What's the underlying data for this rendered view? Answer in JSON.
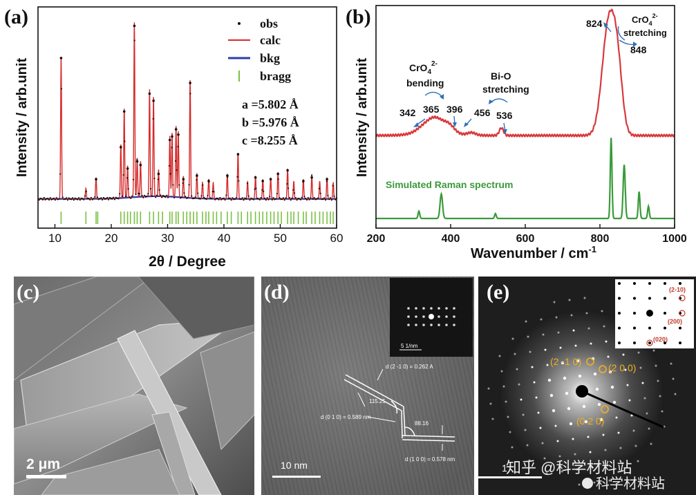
{
  "panel_labels": {
    "a": "(a)",
    "b": "(b)",
    "c": "(c)",
    "d": "(d)",
    "e": "(e)"
  },
  "chart_data": [
    {
      "type": "scatter",
      "xlabel": "2θ / Degree",
      "ylabel": "Intensity / arb.unit",
      "xlim": [
        7,
        60
      ],
      "xticks": [
        10,
        20,
        30,
        40,
        50,
        60
      ],
      "legend": [
        "obs",
        "calc",
        "bkg",
        "bragg"
      ],
      "legend_placement": "top-right",
      "annotations": [
        "a =5.802 Å",
        "b =5.976 Å",
        "c =8.255 Å"
      ],
      "colors": {
        "obs": "#111111",
        "calc": "#d62a2a",
        "bkg": "#2b3fa8",
        "bragg": "#7ac142"
      },
      "baseline": 0.04,
      "peaks": [
        {
          "x": 11.1,
          "y": 0.8
        },
        {
          "x": 15.5,
          "y": 0.06
        },
        {
          "x": 17.3,
          "y": 0.12
        },
        {
          "x": 21.7,
          "y": 0.3
        },
        {
          "x": 22.3,
          "y": 0.5
        },
        {
          "x": 22.9,
          "y": 0.18
        },
        {
          "x": 24.1,
          "y": 0.98
        },
        {
          "x": 24.6,
          "y": 0.22
        },
        {
          "x": 25.2,
          "y": 0.2
        },
        {
          "x": 26.8,
          "y": 0.6
        },
        {
          "x": 27.5,
          "y": 0.56
        },
        {
          "x": 28.4,
          "y": 0.15
        },
        {
          "x": 30.4,
          "y": 0.34
        },
        {
          "x": 30.8,
          "y": 0.36
        },
        {
          "x": 31.5,
          "y": 0.4
        },
        {
          "x": 31.9,
          "y": 0.37
        },
        {
          "x": 32.8,
          "y": 0.12
        },
        {
          "x": 34.0,
          "y": 0.66
        },
        {
          "x": 35.2,
          "y": 0.14
        },
        {
          "x": 36.2,
          "y": 0.09
        },
        {
          "x": 37.3,
          "y": 0.11
        },
        {
          "x": 38.1,
          "y": 0.09
        },
        {
          "x": 40.6,
          "y": 0.14
        },
        {
          "x": 42.5,
          "y": 0.26
        },
        {
          "x": 44.2,
          "y": 0.1
        },
        {
          "x": 45.6,
          "y": 0.13
        },
        {
          "x": 46.9,
          "y": 0.11
        },
        {
          "x": 48.3,
          "y": 0.12
        },
        {
          "x": 49.6,
          "y": 0.15
        },
        {
          "x": 51.3,
          "y": 0.17
        },
        {
          "x": 52.4,
          "y": 0.1
        },
        {
          "x": 54.1,
          "y": 0.11
        },
        {
          "x": 55.6,
          "y": 0.13
        },
        {
          "x": 57.0,
          "y": 0.1
        },
        {
          "x": 58.3,
          "y": 0.12
        },
        {
          "x": 59.4,
          "y": 0.09
        }
      ],
      "bragg_positions": [
        11.1,
        15.5,
        17.3,
        17.6,
        21.7,
        22.3,
        22.9,
        23.4,
        24.1,
        24.6,
        25.2,
        26.8,
        27.5,
        28.4,
        29.1,
        30.4,
        30.8,
        31.5,
        31.9,
        32.8,
        33.4,
        34.0,
        34.6,
        35.2,
        36.2,
        36.8,
        37.3,
        38.1,
        38.7,
        39.5,
        40.6,
        41.3,
        42.5,
        43.1,
        44.2,
        44.8,
        45.6,
        46.3,
        46.9,
        47.6,
        48.3,
        48.9,
        49.6,
        50.2,
        51.3,
        51.9,
        52.4,
        53.2,
        54.1,
        54.6,
        55.6,
        56.2,
        57.0,
        57.6,
        58.3,
        58.9,
        59.4
      ]
    },
    {
      "type": "line",
      "xlabel": "Wavenumber / cm",
      "xlabel_sup": "-1",
      "ylabel": "Intensity / arb.unit",
      "xlim": [
        200,
        1000
      ],
      "xticks": [
        200,
        400,
        600,
        800,
        1000
      ],
      "series": [
        {
          "color": "#d8383b",
          "offset": 0.62,
          "peaks": [
            {
              "x": 342,
              "y": 0.04,
              "w": 35
            },
            {
              "x": 365,
              "y": 0.03,
              "w": 25
            },
            {
              "x": 396,
              "y": 0.03,
              "w": 20
            },
            {
              "x": 456,
              "y": 0.01,
              "w": 15
            },
            {
              "x": 536,
              "y": 0.03,
              "w": 8
            },
            {
              "x": 824,
              "y": 0.45,
              "w": 25
            },
            {
              "x": 848,
              "y": 0.2,
              "w": 18
            }
          ]
        },
        {
          "name": "Simulated Raman spectrum",
          "color": "#3a9a3a",
          "offset": 0.0,
          "peaks": [
            {
              "x": 315,
              "y": 0.03,
              "w": 4
            },
            {
              "x": 375,
              "y": 0.1,
              "w": 6
            },
            {
              "x": 520,
              "y": 0.02,
              "w": 4
            },
            {
              "x": 830,
              "y": 0.33,
              "w": 4
            },
            {
              "x": 865,
              "y": 0.22,
              "w": 5
            },
            {
              "x": 905,
              "y": 0.11,
              "w": 4
            },
            {
              "x": 930,
              "y": 0.05,
              "w": 4
            }
          ]
        }
      ],
      "annotations": [
        "342",
        "365",
        "396",
        "456",
        "536",
        "824",
        "848",
        "bending",
        "Bi-O",
        "stretching",
        "stretching"
      ],
      "crO4_label": {
        "base": "CrO",
        "sub": "4",
        "sup": "2-"
      },
      "sim_label": "Simulated Raman spectrum"
    }
  ],
  "images": {
    "c": {
      "scale_bar": "2 μm"
    },
    "d": {
      "scale_bar": "10 nm",
      "inset_scale": "5 1/nm",
      "annotations": [
        "d (2 -1 0) = 0.262 A",
        "115.25",
        "d (0 1 0) = 0.589 nm",
        "88.16",
        "d (1 0 0) = 0.578 nm"
      ]
    },
    "e": {
      "scale_bar": "1",
      "spots": [
        "(2 -1 0)",
        "(2 0 0)",
        "(0 2 0)"
      ],
      "inset_spots": [
        "(2-10)",
        "(200)",
        "(020)"
      ],
      "watermark1": "知乎 @科学材料站",
      "watermark2": "科学材料站"
    }
  }
}
